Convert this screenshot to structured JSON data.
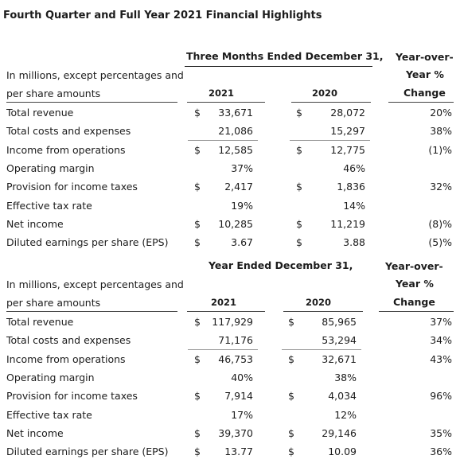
{
  "title": "Fourth Quarter and Full Year 2021 Financial Highlights",
  "sections": [
    {
      "period_header": "Three Months Ended December 31,",
      "yoy_header": [
        "Year-over-",
        "Year %",
        "Change"
      ],
      "desc": [
        "In millions, except percentages and",
        "per share amounts"
      ],
      "years": [
        "2021",
        "2020"
      ],
      "rows": [
        {
          "label": "Total revenue",
          "cur1": "$",
          "v1": "33,671",
          "cur2": "$",
          "v2": "28,072",
          "chg": "20%"
        },
        {
          "label": "Total costs and expenses",
          "cur1": "",
          "v1": "21,086",
          "cur2": "",
          "v2": "15,297",
          "chg": "38%"
        },
        {
          "label": "Income from operations",
          "cur1": "$",
          "v1": "12,585",
          "cur2": "$",
          "v2": "12,775",
          "chg": "(1)%"
        },
        {
          "label": "Operating margin",
          "cur1": "",
          "v1": "37%",
          "cur2": "",
          "v2": "46%",
          "chg": ""
        },
        {
          "label": "Provision for income taxes",
          "cur1": "$",
          "v1": "2,417",
          "cur2": "$",
          "v2": "1,836",
          "chg": "32%"
        },
        {
          "label": "Effective tax rate",
          "cur1": "",
          "v1": "19%",
          "cur2": "",
          "v2": "14%",
          "chg": ""
        },
        {
          "label": "Net income",
          "cur1": "$",
          "v1": "10,285",
          "cur2": "$",
          "v2": "11,219",
          "chg": "(8)%"
        },
        {
          "label": "Diluted earnings per share (EPS)",
          "cur1": "$",
          "v1": "3.67",
          "cur2": "$",
          "v2": "3.88",
          "chg": "(5)%"
        }
      ]
    },
    {
      "period_header": "Year Ended December 31,",
      "yoy_header": [
        "Year-over-",
        "Year %",
        "Change"
      ],
      "desc": [
        "In millions, except percentages and",
        "per share amounts"
      ],
      "years": [
        "2021",
        "2020"
      ],
      "rows": [
        {
          "label": "Total revenue",
          "cur1": "$",
          "v1": "117,929",
          "cur2": "$",
          "v2": "85,965",
          "chg": "37%"
        },
        {
          "label": "Total costs and expenses",
          "cur1": "",
          "v1": "71,176",
          "cur2": "",
          "v2": "53,294",
          "chg": "34%"
        },
        {
          "label": "Income from operations",
          "cur1": "$",
          "v1": "46,753",
          "cur2": "$",
          "v2": "32,671",
          "chg": "43%"
        },
        {
          "label": "Operating margin",
          "cur1": "",
          "v1": "40%",
          "cur2": "",
          "v2": "38%",
          "chg": ""
        },
        {
          "label": "Provision for income taxes",
          "cur1": "$",
          "v1": "7,914",
          "cur2": "$",
          "v2": "4,034",
          "chg": "96%"
        },
        {
          "label": "Effective tax rate",
          "cur1": "",
          "v1": "17%",
          "cur2": "",
          "v2": "12%",
          "chg": ""
        },
        {
          "label": "Net income",
          "cur1": "$",
          "v1": "39,370",
          "cur2": "$",
          "v2": "29,146",
          "chg": "35%"
        },
        {
          "label": "Diluted earnings per share (EPS)",
          "cur1": "$",
          "v1": "13.77",
          "cur2": "$",
          "v2": "10.09",
          "chg": "36%"
        }
      ]
    }
  ]
}
